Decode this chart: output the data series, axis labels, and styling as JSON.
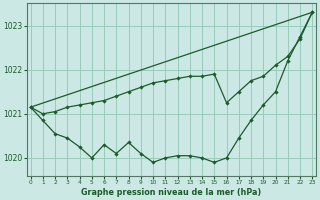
{
  "xlabel": "Graphe pression niveau de la mer (hPa)",
  "background_color": "#cce8e4",
  "grid_color": "#99ccbb",
  "line_color": "#1a5c2a",
  "ylim": [
    1019.6,
    1023.5
  ],
  "xlim": [
    -0.3,
    23.3
  ],
  "yticks": [
    1020,
    1021,
    1022,
    1023
  ],
  "xticks": [
    0,
    1,
    2,
    3,
    4,
    5,
    6,
    7,
    8,
    9,
    10,
    11,
    12,
    13,
    14,
    15,
    16,
    17,
    18,
    19,
    20,
    21,
    22,
    23
  ],
  "series1_x": [
    0,
    1,
    2,
    3,
    4,
    5,
    6,
    7,
    8,
    9,
    10,
    11,
    12,
    13,
    14,
    15,
    16,
    17,
    18,
    19,
    20,
    21,
    22,
    23
  ],
  "series1_y": [
    1021.15,
    1020.85,
    1020.55,
    1020.45,
    1020.25,
    1020.0,
    1020.3,
    1020.1,
    1020.35,
    1020.1,
    1019.9,
    1020.0,
    1020.05,
    1020.05,
    1020.0,
    1019.9,
    1020.0,
    1020.45,
    1020.85,
    1021.2,
    1021.5,
    1022.2,
    1022.75,
    1023.3
  ],
  "series2_x": [
    0,
    23
  ],
  "series2_y": [
    1021.15,
    1023.3
  ],
  "series3_x": [
    0,
    1,
    2,
    3,
    4,
    5,
    6,
    7,
    8,
    9,
    10,
    11,
    12,
    13,
    14,
    15,
    16,
    17,
    18,
    19,
    20,
    21,
    22,
    23
  ],
  "series3_y": [
    1021.15,
    1021.0,
    1021.05,
    1021.15,
    1021.2,
    1021.25,
    1021.3,
    1021.4,
    1021.5,
    1021.6,
    1021.7,
    1021.75,
    1021.8,
    1021.85,
    1021.85,
    1021.9,
    1021.25,
    1021.5,
    1021.75,
    1021.85,
    1022.1,
    1022.3,
    1022.7,
    1023.3
  ]
}
